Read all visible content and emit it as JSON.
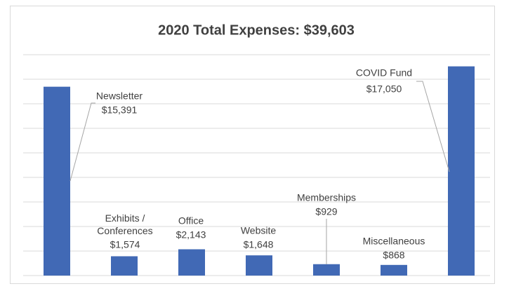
{
  "chart_data": {
    "type": "bar",
    "title": "2020 Total Expenses: $39,603",
    "categories": [
      "Newsletter",
      "Exhibits / Conferences",
      "Office",
      "Website",
      "Memberships",
      "Miscellaneous",
      "COVID Fund"
    ],
    "values": [
      15391,
      1574,
      2143,
      1648,
      929,
      868,
      17050
    ],
    "value_labels": [
      "$15,391",
      "$1,574",
      "$2,143",
      "$1,648",
      "$929",
      "$868",
      "$17,050"
    ],
    "color": "#4169b5",
    "ylim": [
      0,
      18000
    ],
    "yticks": [
      0,
      2000,
      4000,
      6000,
      8000,
      10000,
      12000,
      14000,
      16000,
      18000
    ],
    "grid": true
  }
}
